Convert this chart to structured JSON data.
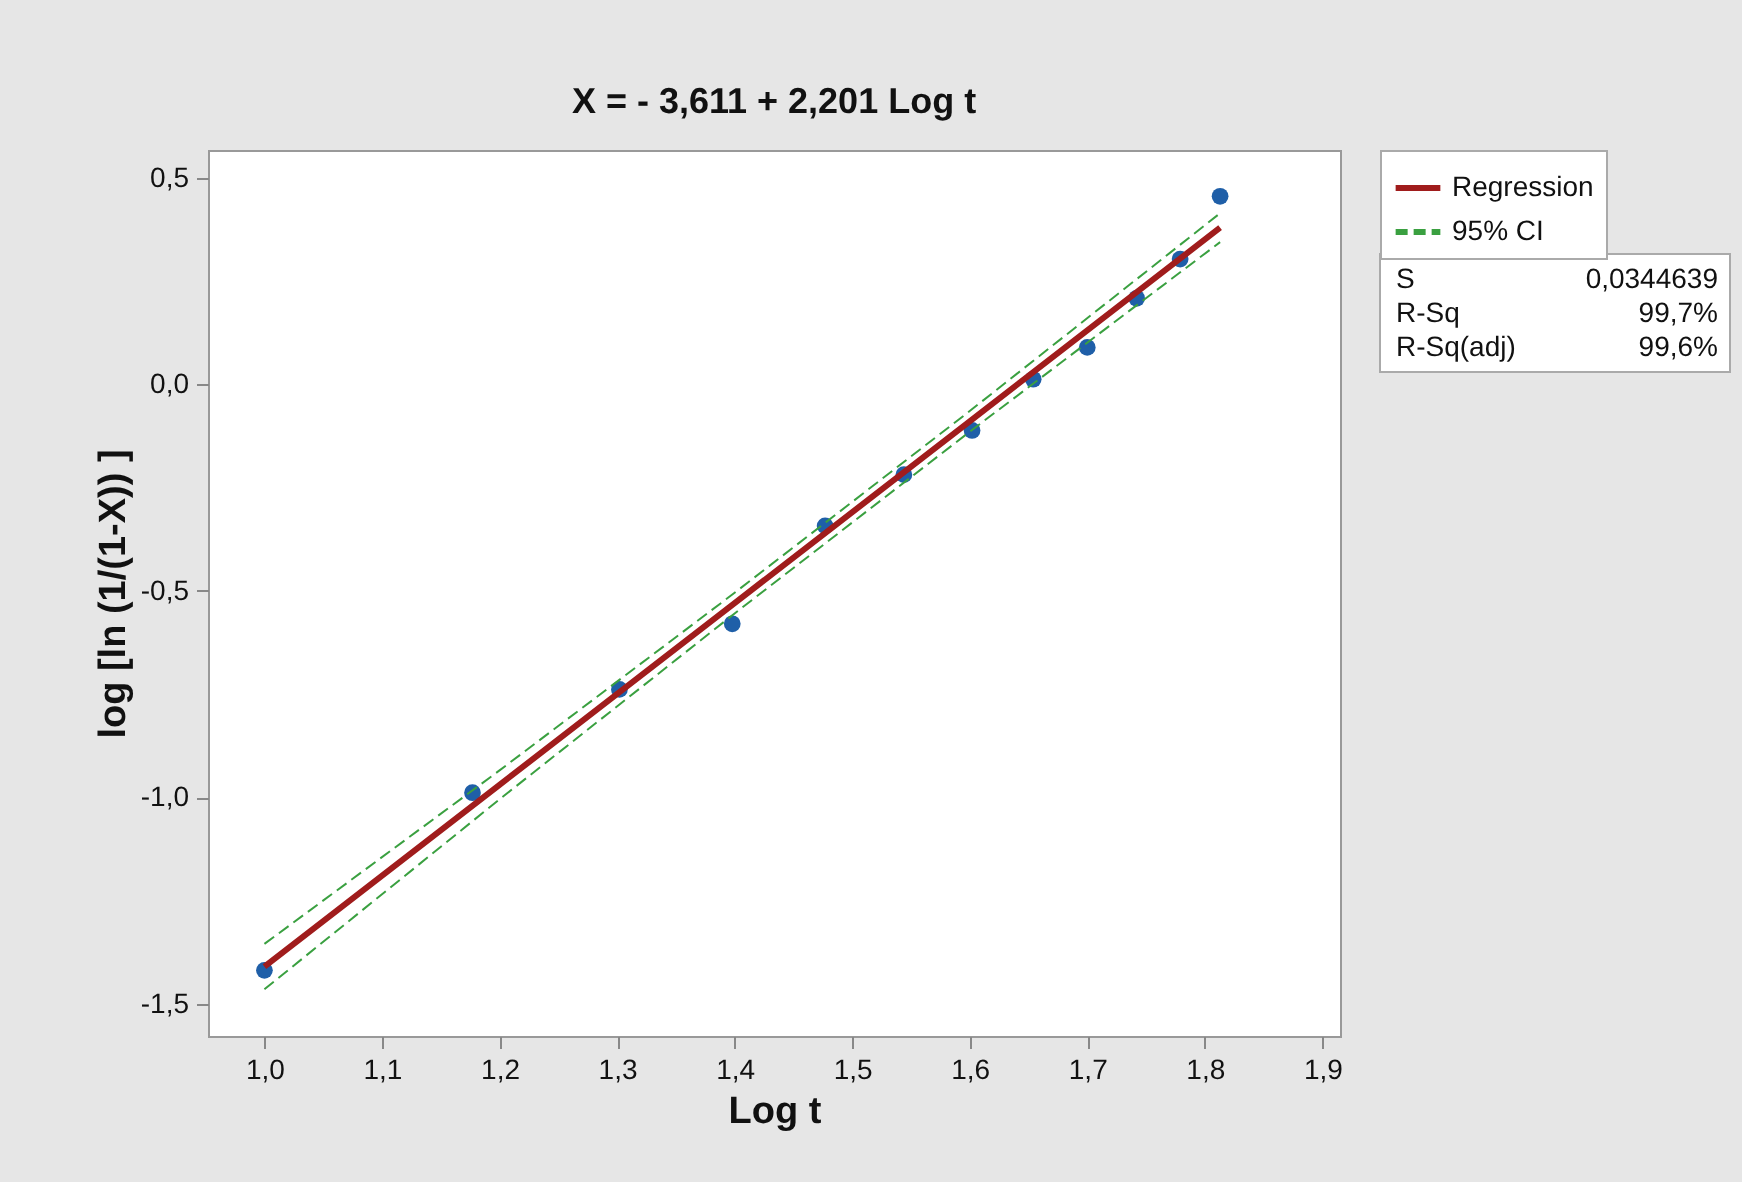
{
  "chart_data": {
    "type": "scatter",
    "title": "X = - 3,611 + 2,201 Log t",
    "xlabel": "Log t",
    "ylabel": "log   [ln   (1/(1-X)) ]",
    "x": [
      1.0,
      1.177,
      1.302,
      1.398,
      1.477,
      1.544,
      1.602,
      1.654,
      1.7,
      1.742,
      1.779,
      1.813
    ],
    "series": [
      {
        "color": "#1f5fa8",
        "marker": "circle",
        "values": [
          -1.419,
          -0.989,
          -0.739,
          -0.58,
          -0.343,
          -0.219,
          -0.112,
          0.012,
          0.089,
          0.208,
          0.303,
          0.455
        ]
      },
      {
        "type": "line",
        "name": "Regression",
        "color": "#a01c1c",
        "line_style": "solid",
        "x": [
          1.0,
          1.2,
          1.4,
          1.6,
          1.813
        ],
        "values": [
          -1.41,
          -0.97,
          -0.53,
          -0.09,
          0.379
        ]
      },
      {
        "type": "line",
        "name": "95% CI",
        "color": "#3aa040",
        "line_style": "dashed",
        "x": [
          1.0,
          1.2,
          1.4,
          1.6,
          1.813
        ],
        "values": [
          -1.355,
          -0.935,
          -0.505,
          -0.065,
          0.414
        ]
      },
      {
        "type": "line",
        "color": "#3aa040",
        "line_style": "dashed",
        "x": [
          1.0,
          1.2,
          1.4,
          1.6,
          1.813
        ],
        "values": [
          -1.465,
          -1.005,
          -0.555,
          -0.115,
          0.344
        ]
      }
    ],
    "xlim": [
      0.952,
      1.915
    ],
    "ylim": [
      -1.578,
      0.567
    ],
    "xticks": [
      {
        "value": 1.0,
        "label": "1,0"
      },
      {
        "value": 1.1,
        "label": "1,1"
      },
      {
        "value": 1.2,
        "label": "1,2"
      },
      {
        "value": 1.3,
        "label": "1,3"
      },
      {
        "value": 1.4,
        "label": "1,4"
      },
      {
        "value": 1.5,
        "label": "1,5"
      },
      {
        "value": 1.6,
        "label": "1,6"
      },
      {
        "value": 1.7,
        "label": "1,7"
      },
      {
        "value": 1.8,
        "label": "1,8"
      },
      {
        "value": 1.9,
        "label": "1,9"
      }
    ],
    "yticks": [
      {
        "value": -1.5,
        "label": "-1,5"
      },
      {
        "value": -1.0,
        "label": "-1,0"
      },
      {
        "value": -0.5,
        "label": "-0,5"
      },
      {
        "value": 0.0,
        "label": "0,0"
      },
      {
        "value": 0.5,
        "label": "0,5"
      }
    ],
    "annotations": [
      "S",
      "0,0344639",
      "R-Sq",
      "99,7%",
      "R-Sq(adj)",
      "99,6%"
    ],
    "legend": "top right",
    "grid": false
  }
}
